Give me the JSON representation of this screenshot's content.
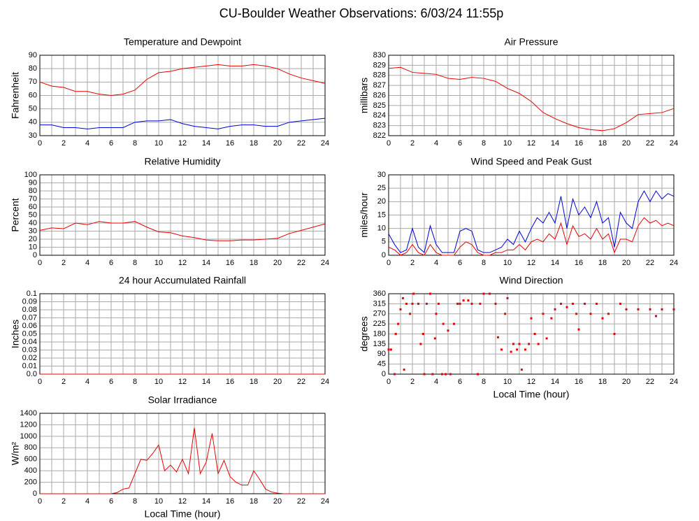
{
  "title": "CU-Boulder Weather Observations: 6/03/24 11:55p",
  "chart_data": [
    {
      "type": "line",
      "title": "Temperature and Dewpoint",
      "ylabel": "Fahrenheit",
      "x": [
        0,
        1,
        2,
        3,
        4,
        5,
        6,
        7,
        8,
        9,
        10,
        11,
        12,
        13,
        14,
        15,
        16,
        17,
        18,
        19,
        20,
        21,
        22,
        23,
        24
      ],
      "series": [
        {
          "color": "#ee0000",
          "values": [
            70,
            67,
            66,
            63,
            63,
            61,
            60,
            61,
            64,
            72,
            77,
            78,
            80,
            81,
            82,
            83,
            82,
            82,
            83,
            82,
            80,
            76,
            73,
            71,
            69
          ]
        },
        {
          "color": "#0000dd",
          "values": [
            38,
            38,
            36,
            36,
            35,
            36,
            36,
            36,
            40,
            41,
            41,
            42,
            39,
            37,
            36,
            35,
            37,
            38,
            38,
            37,
            37,
            40,
            41,
            42,
            43
          ]
        }
      ],
      "xlim": [
        0,
        24
      ],
      "xticks": [
        0,
        2,
        4,
        6,
        8,
        10,
        12,
        14,
        16,
        18,
        20,
        22,
        24
      ],
      "ylim": [
        30,
        90
      ],
      "yticks": [
        30,
        40,
        50,
        60,
        70,
        80,
        90
      ],
      "grid": true
    },
    {
      "type": "line",
      "title": "Air Pressure",
      "ylabel": "millibars",
      "x": [
        0,
        1,
        2,
        3,
        4,
        5,
        6,
        7,
        8,
        9,
        10,
        11,
        12,
        13,
        14,
        15,
        16,
        17,
        18,
        19,
        20,
        21,
        22,
        23,
        24
      ],
      "series": [
        {
          "color": "#ee0000",
          "values": [
            828.7,
            828.8,
            828.3,
            828.2,
            828.1,
            827.7,
            827.6,
            827.8,
            827.7,
            827.4,
            826.7,
            826.2,
            825.4,
            824.3,
            823.7,
            823.2,
            822.8,
            822.6,
            822.5,
            822.7,
            823.3,
            824.1,
            824.2,
            824.3,
            824.7
          ]
        }
      ],
      "xlim": [
        0,
        24
      ],
      "xticks": [
        0,
        2,
        4,
        6,
        8,
        10,
        12,
        14,
        16,
        18,
        20,
        22,
        24
      ],
      "ylim": [
        822,
        830
      ],
      "yticks": [
        822,
        823,
        824,
        825,
        826,
        827,
        828,
        829,
        830
      ],
      "grid": true
    },
    {
      "type": "line",
      "title": "Relative Humidity",
      "ylabel": "Percent",
      "x": [
        0,
        1,
        2,
        3,
        4,
        5,
        6,
        7,
        8,
        9,
        10,
        11,
        12,
        13,
        14,
        15,
        16,
        17,
        18,
        19,
        20,
        21,
        22,
        23,
        24
      ],
      "series": [
        {
          "color": "#ee0000",
          "values": [
            31,
            34,
            33,
            40,
            38,
            42,
            40,
            40,
            42,
            35,
            29,
            28,
            24,
            22,
            19,
            18,
            18,
            19,
            19,
            20,
            21,
            27,
            31,
            35,
            39
          ]
        }
      ],
      "xlim": [
        0,
        24
      ],
      "xticks": [
        0,
        2,
        4,
        6,
        8,
        10,
        12,
        14,
        16,
        18,
        20,
        22,
        24
      ],
      "ylim": [
        0,
        100
      ],
      "yticks": [
        0,
        10,
        20,
        30,
        40,
        50,
        60,
        70,
        80,
        90,
        100
      ],
      "grid": true
    },
    {
      "type": "line",
      "title": "Wind Speed and Peak Gust",
      "ylabel": "miles/hour",
      "x": [
        0,
        0.5,
        1,
        1.5,
        2,
        2.5,
        3,
        3.5,
        4,
        4.5,
        5,
        5.5,
        6,
        6.5,
        7,
        7.5,
        8,
        8.5,
        9,
        9.5,
        10,
        10.5,
        11,
        11.5,
        12,
        12.5,
        13,
        13.5,
        14,
        14.5,
        15,
        15.5,
        16,
        16.5,
        17,
        17.5,
        18,
        18.5,
        19,
        19.5,
        20,
        20.5,
        21,
        21.5,
        22,
        22.5,
        23,
        23.5,
        24
      ],
      "series": [
        {
          "color": "#0000dd",
          "values": [
            8,
            4,
            1,
            2,
            10,
            3,
            1,
            11,
            4,
            1,
            1,
            1,
            9,
            10,
            9,
            2,
            1,
            1,
            2,
            3,
            6,
            4,
            9,
            5,
            10,
            14,
            12,
            16,
            12,
            22,
            10,
            21,
            15,
            18,
            14,
            20,
            12,
            14,
            3,
            16,
            12,
            10,
            20,
            24,
            20,
            24,
            21,
            23,
            22
          ]
        },
        {
          "color": "#ee0000",
          "values": [
            3,
            2,
            0,
            1,
            4,
            1,
            0,
            4,
            1,
            0,
            0,
            0,
            3,
            5,
            4,
            1,
            0,
            0,
            1,
            1,
            2,
            2,
            4,
            2,
            5,
            6,
            5,
            8,
            6,
            12,
            4,
            11,
            7,
            8,
            6,
            10,
            6,
            8,
            1,
            6,
            6,
            5,
            11,
            14,
            12,
            13,
            11,
            12,
            11
          ]
        }
      ],
      "xlim": [
        0,
        24
      ],
      "xticks": [
        0,
        2,
        4,
        6,
        8,
        10,
        12,
        14,
        16,
        18,
        20,
        22,
        24
      ],
      "ylim": [
        0,
        30
      ],
      "yticks": [
        0,
        5,
        10,
        15,
        20,
        25,
        30
      ],
      "grid": true
    },
    {
      "type": "line",
      "title": "24 hour Accumulated Rainfall",
      "ylabel": "Inches",
      "x": [
        0,
        1,
        2,
        3,
        4,
        5,
        6,
        7,
        8,
        9,
        10,
        11,
        12,
        13,
        14,
        15,
        16,
        17,
        18,
        19,
        20,
        21,
        22,
        23,
        24
      ],
      "series": [
        {
          "color": "#ee0000",
          "values": [
            0,
            0,
            0,
            0,
            0,
            0,
            0,
            0,
            0,
            0,
            0,
            0,
            0,
            0,
            0,
            0,
            0,
            0,
            0,
            0,
            0,
            0,
            0,
            0,
            0
          ]
        }
      ],
      "xlim": [
        0,
        24
      ],
      "xticks": [
        0,
        2,
        4,
        6,
        8,
        10,
        12,
        14,
        16,
        18,
        20,
        22,
        24
      ],
      "ylim": [
        0,
        0.1
      ],
      "yticks": [
        {
          "value": 0,
          "label": "0.0"
        },
        0.01,
        0.02,
        0.03,
        0.04,
        0.05,
        0.06,
        0.07,
        0.08,
        0.09,
        0.1
      ],
      "grid": true
    },
    {
      "type": "scatter",
      "title": "Wind Direction",
      "ylabel": "degrees",
      "xlabel": "Local Time (hour)",
      "x": [
        0,
        0.2,
        0.5,
        0.6,
        0.8,
        1,
        1.2,
        1.3,
        1.5,
        1.8,
        2,
        2.1,
        2.5,
        2.7,
        2.9,
        3,
        3.2,
        3.5,
        3.7,
        3.9,
        4,
        4.2,
        4.5,
        4.6,
        4.8,
        5,
        5.2,
        5.5,
        5.8,
        6,
        6.3,
        6.7,
        7,
        7.5,
        7.7,
        8,
        8.5,
        9,
        9.2,
        9.5,
        9.8,
        10,
        10.3,
        10.5,
        10.8,
        11,
        11.2,
        11.5,
        11.8,
        12,
        12.3,
        12.6,
        13,
        13.3,
        13.7,
        14,
        14.5,
        15,
        15.5,
        15.8,
        16,
        16.5,
        17,
        17.5,
        18,
        18.5,
        19,
        19.5,
        20,
        21,
        22,
        22.5,
        23,
        24
      ],
      "series": [
        {
          "color": "#ee0000",
          "values": [
            110,
            110,
            0,
            180,
            225,
            290,
            340,
            20,
            315,
            270,
            315,
            360,
            315,
            135,
            180,
            0,
            315,
            360,
            0,
            160,
            270,
            315,
            0,
            225,
            0,
            195,
            0,
            225,
            315,
            315,
            330,
            330,
            315,
            0,
            315,
            360,
            360,
            315,
            165,
            110,
            270,
            340,
            100,
            135,
            110,
            135,
            20,
            110,
            135,
            250,
            180,
            135,
            270,
            160,
            250,
            290,
            315,
            300,
            315,
            270,
            200,
            315,
            270,
            315,
            250,
            270,
            180,
            315,
            290,
            290,
            290,
            260,
            290,
            290
          ]
        }
      ],
      "xlim": [
        0,
        24
      ],
      "xticks": [
        0,
        2,
        4,
        6,
        8,
        10,
        12,
        14,
        16,
        18,
        20,
        22,
        24
      ],
      "ylim": [
        0,
        360
      ],
      "yticks": [
        0,
        45,
        90,
        135,
        180,
        225,
        270,
        315,
        360
      ],
      "grid": true
    },
    {
      "type": "line",
      "title": "Solar Irradiance",
      "ylabel": "W/m²",
      "xlabel": "Local Time (hour)",
      "x": [
        0,
        0.5,
        1,
        1.5,
        2,
        2.5,
        3,
        3.5,
        4,
        4.5,
        5,
        5.5,
        6,
        6.5,
        7,
        7.5,
        8,
        8.5,
        9,
        9.5,
        10,
        10.5,
        11,
        11.5,
        12,
        12.5,
        13,
        13.5,
        14,
        14.5,
        15,
        15.5,
        16,
        16.5,
        17,
        17.5,
        18,
        18.5,
        19,
        19.5,
        20,
        20.5,
        21,
        21.5,
        22,
        22.5,
        23,
        23.5,
        24
      ],
      "series": [
        {
          "color": "#ee0000",
          "values": [
            0,
            0,
            0,
            0,
            0,
            0,
            0,
            0,
            0,
            0,
            0,
            0,
            0,
            20,
            80,
            100,
            350,
            600,
            580,
            700,
            850,
            400,
            500,
            380,
            600,
            350,
            1150,
            350,
            550,
            1050,
            350,
            580,
            300,
            200,
            150,
            150,
            400,
            250,
            80,
            30,
            10,
            0,
            0,
            0,
            0,
            0,
            0,
            0,
            0
          ]
        }
      ],
      "xlim": [
        0,
        24
      ],
      "xticks": [
        0,
        2,
        4,
        6,
        8,
        10,
        12,
        14,
        16,
        18,
        20,
        22,
        24
      ],
      "ylim": [
        0,
        1400
      ],
      "yticks": [
        0,
        200,
        400,
        600,
        800,
        1000,
        1200,
        1400
      ],
      "grid": true
    }
  ]
}
